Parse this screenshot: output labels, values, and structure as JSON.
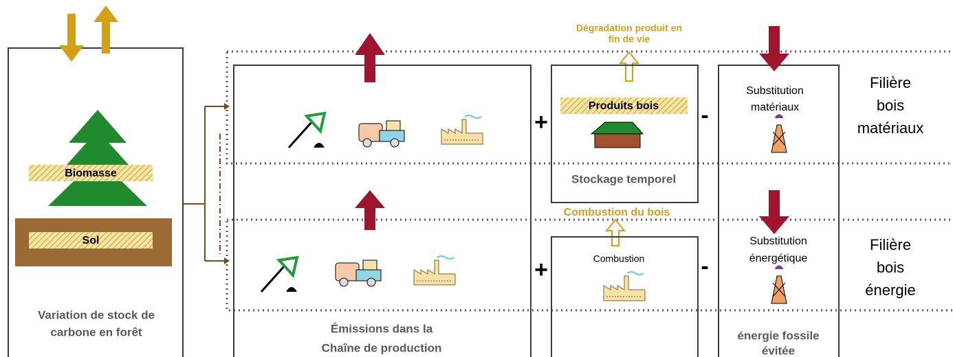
{
  "forest": {
    "caption": [
      "Variation de stock de",
      "carbone en forêt"
    ],
    "biomass": "Biomasse",
    "soil": "Sol"
  },
  "production": {
    "caption": [
      "Émissions  dans la",
      "Chaîne de production"
    ]
  },
  "storage": {
    "top_label": [
      "Dégradation produit en",
      "fin de vie"
    ],
    "products": "Produits bois",
    "caption": "Stockage temporel"
  },
  "combustion": {
    "top_label": "Combustion du bois",
    "label": "Combustion"
  },
  "substitution": {
    "material": [
      "Substitution",
      "matériaux"
    ],
    "energy": [
      "Substitution",
      "énergétique"
    ],
    "caption": [
      "énergie fossile",
      "évitée"
    ]
  },
  "operators": {
    "plus": "+",
    "minus": "-"
  },
  "sectors": {
    "material": [
      "Filière",
      "bois",
      "matériaux"
    ],
    "energy": [
      "Filière",
      "bois",
      "énergie"
    ]
  }
}
